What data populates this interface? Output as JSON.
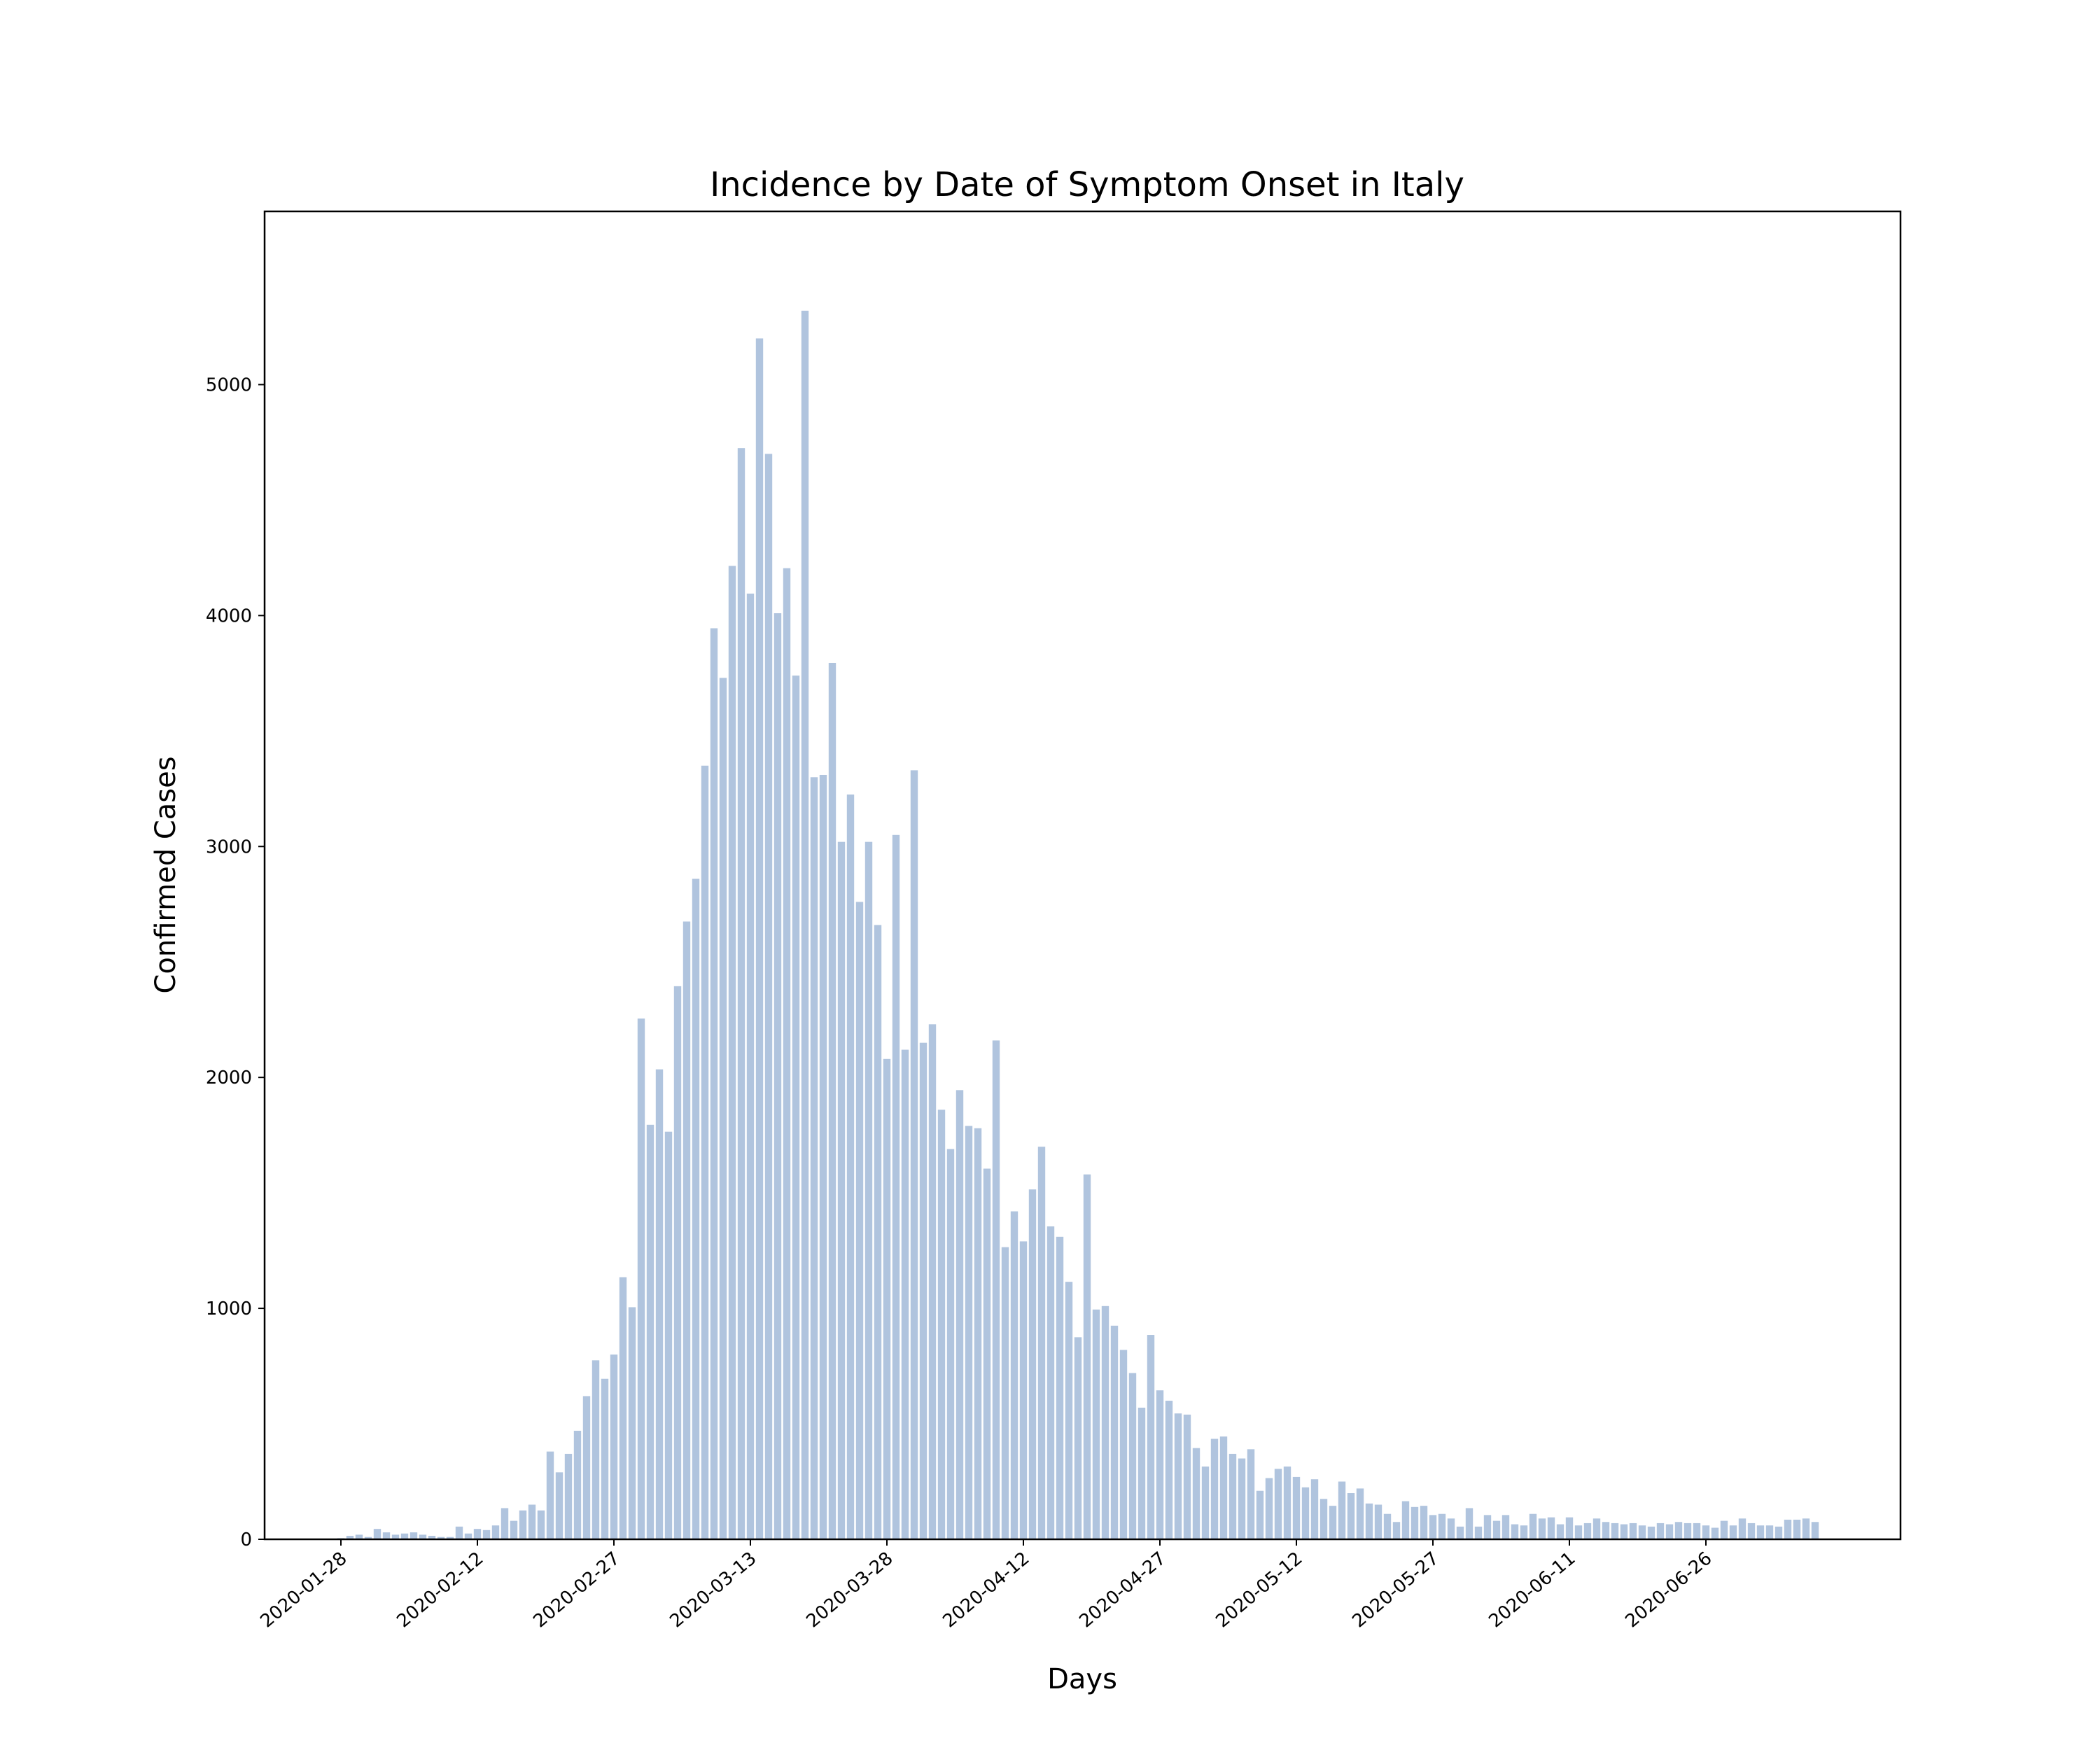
{
  "chart_data": {
    "type": "bar",
    "title": "Incidence by Date of Symptom Onset in Italy",
    "xlabel": "Days",
    "ylabel": "Confirmed Cases",
    "start_date": "2020-01-28",
    "x_ticks": [
      "2020-01-28",
      "2020-02-12",
      "2020-02-27",
      "2020-03-13",
      "2020-03-28",
      "2020-04-12",
      "2020-04-27",
      "2020-05-12",
      "2020-05-27",
      "2020-06-11",
      "2020-06-26"
    ],
    "y_ticks": [
      0,
      1000,
      2000,
      3000,
      4000,
      5000
    ],
    "ylim": [
      0,
      5750
    ],
    "grid": false,
    "bar_color": "#b0c4de",
    "values": [
      5,
      15,
      20,
      10,
      45,
      30,
      20,
      25,
      30,
      20,
      15,
      10,
      10,
      55,
      25,
      45,
      40,
      60,
      135,
      80,
      125,
      150,
      125,
      380,
      290,
      370,
      470,
      620,
      775,
      695,
      800,
      1135,
      1005,
      2255,
      1795,
      2035,
      1765,
      2395,
      2675,
      2860,
      3350,
      3945,
      3730,
      4215,
      4725,
      4095,
      5200,
      4700,
      4010,
      4205,
      3740,
      5320,
      3300,
      3310,
      3795,
      3020,
      3225,
      2760,
      3020,
      2660,
      2080,
      3050,
      2120,
      3330,
      2150,
      2230,
      1860,
      1690,
      1945,
      1790,
      1780,
      1605,
      2160,
      1265,
      1420,
      1290,
      1515,
      1700,
      1355,
      1310,
      1115,
      875,
      1580,
      995,
      1010,
      925,
      820,
      720,
      570,
      885,
      645,
      600,
      545,
      540,
      395,
      315,
      435,
      445,
      370,
      350,
      390,
      210,
      265,
      305,
      315,
      270,
      225,
      260,
      175,
      145,
      250,
      200,
      220,
      155,
      150,
      110,
      75,
      165,
      140,
      145,
      105,
      110,
      90,
      55,
      135,
      55,
      105,
      80,
      105,
      65,
      60,
      110,
      90,
      95,
      65,
      95,
      60,
      70,
      90,
      75,
      70,
      65,
      70,
      60,
      55,
      70,
      65,
      75,
      70,
      70,
      60,
      50,
      80,
      60,
      90,
      70,
      60,
      60,
      55,
      85,
      85,
      90,
      75
    ]
  }
}
